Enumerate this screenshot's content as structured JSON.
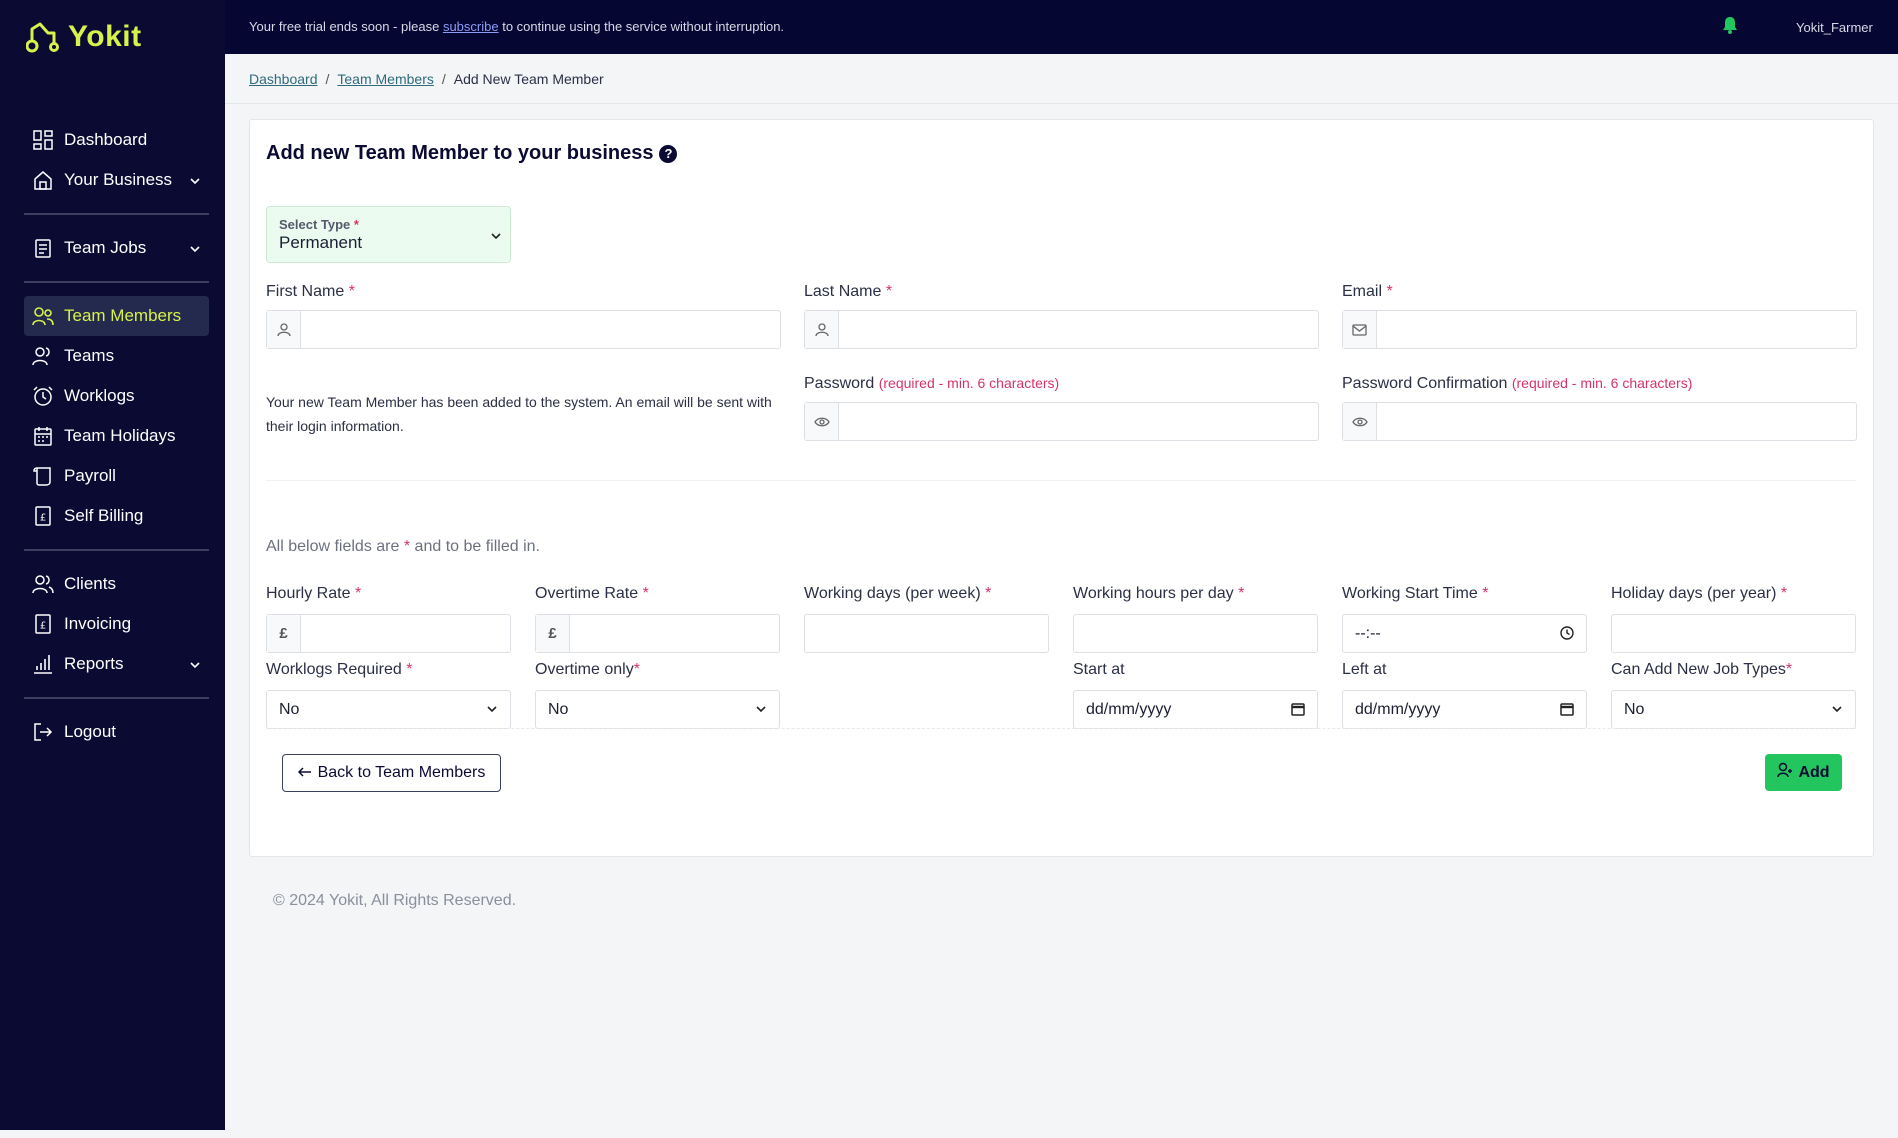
{
  "brand": {
    "name": "Yokit",
    "accent": "#d7f24a"
  },
  "topbar": {
    "trial_before": "Your free trial ends soon - please",
    "trial_link": "subscribe",
    "trial_after": "to continue using the service without interruption.",
    "username": "Yokit_Farmer"
  },
  "sidebar": {
    "dashboard": "Dashboard",
    "your_business": "Your Business",
    "team_jobs": "Team Jobs",
    "team_members": "Team Members",
    "teams": "Teams",
    "worklogs": "Worklogs",
    "team_holidays": "Team Holidays",
    "payroll": "Payroll",
    "self_billing": "Self Billing",
    "clients": "Clients",
    "invoicing": "Invoicing",
    "reports": "Reports",
    "logout": "Logout"
  },
  "breadcrumb": {
    "dashboard": "Dashboard",
    "team_members": "Team Members",
    "current": "Add New Team Member",
    "separator": "/"
  },
  "form": {
    "title": "Add new Team Member to your business",
    "help": "?",
    "type_label": "Select Type",
    "type_value": "Permanent",
    "first_name": "First Name",
    "last_name": "Last Name",
    "email": "Email",
    "password": "Password",
    "password_confirmation": "Password Confirmation",
    "password_hint": "(required - min. 6 characters)",
    "info_text": "Your new Team Member has been added to the system. An email will be sent with their login information.",
    "note_before": "All below fields are",
    "note_after": "and to be filled in.",
    "required_mark": "*",
    "hourly_rate": "Hourly Rate",
    "overtime_rate": "Overtime Rate",
    "currency": "£",
    "working_days": "Working days (per week)",
    "working_hours": "Working hours per day",
    "working_start": "Working Start Time",
    "working_start_value": "--:--",
    "holiday_days": "Holiday days (per year)",
    "worklogs_required": "Worklogs Required",
    "worklogs_required_value": "No",
    "overtime_only": "Overtime only",
    "overtime_only_value": "No",
    "start_at": "Start at",
    "start_at_value": "dd/mm/yyyy",
    "left_at": "Left at",
    "left_at_value": "dd/mm/yyyy",
    "can_add_job_types": "Can Add New Job Types",
    "can_add_job_types_value": "No",
    "back_button": "Back to Team Members",
    "add_button": "Add"
  },
  "footer": "© 2024 Yokit, All Rights Reserved."
}
